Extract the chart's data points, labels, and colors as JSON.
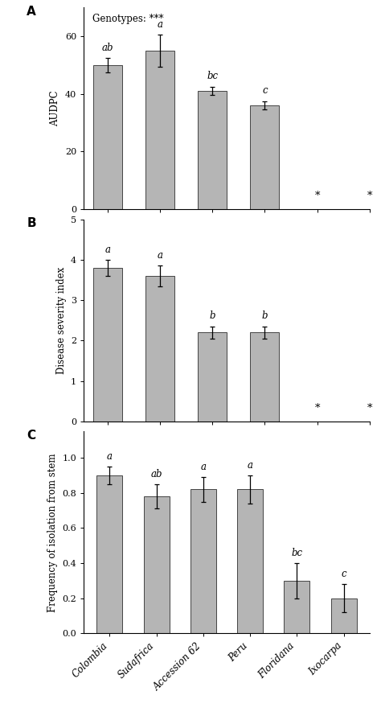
{
  "categories": [
    "Colombia",
    "Sudafrica",
    "Accession 62",
    "Peru",
    "Floridana",
    "Ixocarpa"
  ],
  "panel_A": {
    "values": [
      50,
      55,
      41,
      36,
      null,
      null
    ],
    "errors": [
      2.5,
      5.5,
      1.5,
      1.5,
      null,
      null
    ],
    "letters": [
      "ab",
      "a",
      "bc",
      "c",
      "*",
      "*"
    ],
    "ylabel": "AUDPC",
    "ylim": [
      0,
      70
    ],
    "yticks": [
      0,
      20,
      40,
      60
    ],
    "annotation": "Genotypes: ***"
  },
  "panel_B": {
    "values": [
      3.8,
      3.6,
      2.2,
      2.2,
      null,
      null
    ],
    "errors": [
      0.2,
      0.25,
      0.15,
      0.15,
      null,
      null
    ],
    "letters": [
      "a",
      "a",
      "b",
      "b",
      "*",
      "*"
    ],
    "ylabel": "Disease severity index",
    "ylim": [
      0,
      5
    ],
    "yticks": [
      0,
      1,
      2,
      3,
      4,
      5
    ]
  },
  "panel_C": {
    "values": [
      0.9,
      0.78,
      0.82,
      0.82,
      0.3,
      0.2
    ],
    "errors": [
      0.05,
      0.07,
      0.07,
      0.08,
      0.1,
      0.08
    ],
    "letters": [
      "a",
      "ab",
      "a",
      "a",
      "bc",
      "c"
    ],
    "ylabel": "Frequency of isolation from stem",
    "ylim": [
      0,
      1.15
    ],
    "yticks": [
      0.0,
      0.2,
      0.4,
      0.6,
      0.8,
      1.0
    ]
  },
  "bar_color": "#b5b5b5",
  "bar_edge_color": "#444444",
  "bar_width": 0.55,
  "letter_fontsize": 8.5,
  "axis_label_fontsize": 8.5,
  "tick_fontsize": 8,
  "annotation_fontsize": 8.5,
  "panel_label_fontsize": 11
}
